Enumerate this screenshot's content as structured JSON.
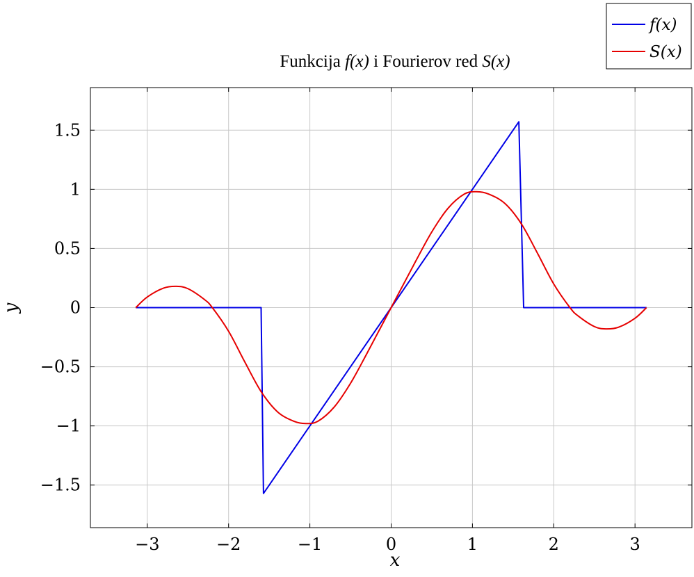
{
  "chart_data": {
    "type": "line",
    "title": {
      "text_1": "Funkcija ",
      "math_1": "f(x)",
      "text_2": " i Fourierov red ",
      "math_2": "S(x)"
    },
    "xlabel": "x",
    "ylabel": "y",
    "xlim": [
      -3.7,
      3.7
    ],
    "ylim": [
      -1.86,
      1.86
    ],
    "xticks": [
      -3,
      -2,
      -1,
      0,
      1,
      2,
      3
    ],
    "xtick_labels": [
      "−3",
      "−2",
      "−1",
      "0",
      "1",
      "2",
      "3"
    ],
    "yticks": [
      -1.5,
      -1,
      -0.5,
      0,
      0.5,
      1,
      1.5
    ],
    "ytick_labels": [
      "−1.5",
      "−1",
      "−0.5",
      "0",
      "0.5",
      "1",
      "1.5"
    ],
    "grid": true,
    "legend_position": "top-right",
    "series": [
      {
        "name": "f(x)",
        "color": "#0000e6",
        "x": [
          -3.14159,
          -1.6,
          -1.5708,
          1.5708,
          1.63,
          3.14159
        ],
        "y": [
          0,
          0,
          -1.5708,
          1.5708,
          0,
          0
        ]
      },
      {
        "name": "S(x)",
        "color": "#e60000",
        "function": "sin(x)+cos(x)-cos(2x)/2-... approximated by sampled values",
        "x": [
          -3.14159,
          -3.0,
          -2.8,
          -2.64,
          -2.5,
          -2.3,
          -2.2,
          -2.0,
          -1.8,
          -1.6,
          -1.4,
          -1.2,
          -1.05,
          -0.9,
          -0.7,
          -0.5,
          -0.3,
          0.0,
          0.3,
          0.5,
          0.7,
          0.9,
          1.05,
          1.2,
          1.4,
          1.6,
          1.8,
          2.0,
          2.2,
          2.3,
          2.5,
          2.64,
          2.8,
          3.0,
          3.14159
        ],
        "y": [
          0,
          0.09,
          0.165,
          0.18,
          0.16,
          0.07,
          0.0,
          -0.2,
          -0.46,
          -0.71,
          -0.88,
          -0.96,
          -0.98,
          -0.96,
          -0.84,
          -0.64,
          -0.39,
          0,
          0.39,
          0.64,
          0.84,
          0.96,
          0.98,
          0.96,
          0.88,
          0.71,
          0.46,
          0.2,
          0.0,
          -0.07,
          -0.16,
          -0.18,
          -0.165,
          -0.09,
          0
        ]
      }
    ]
  }
}
